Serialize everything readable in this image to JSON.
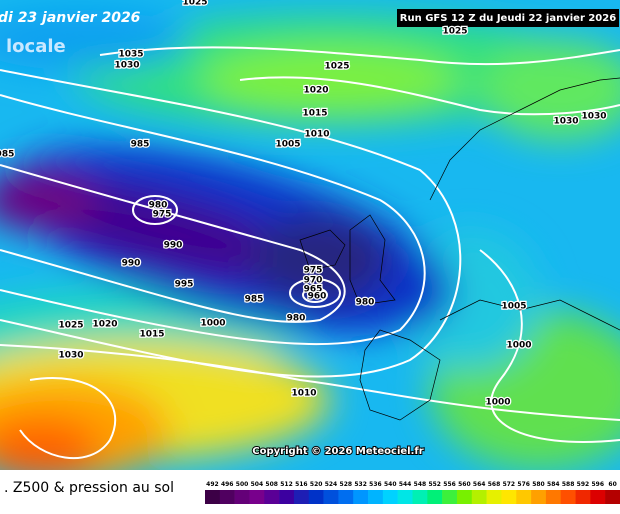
{
  "header": {
    "date": "di 23 janvier 2026",
    "subtitle": "locale",
    "run": "Run GFS 12 Z du Jeudi 22 janvier 2026"
  },
  "isobar_labels": [
    "1025",
    "1025",
    "1035",
    "1030",
    "1025",
    "1020",
    "1015",
    "1010",
    "1005",
    "985",
    "985",
    "980",
    "975",
    "990",
    "990",
    "995",
    "985",
    "975",
    "970",
    "965",
    "960",
    "980",
    "980",
    "1000",
    "1025",
    "1020",
    "1015",
    "1030",
    "1030",
    "1030",
    "1005",
    "1000",
    "1000",
    "1010"
  ],
  "copyright": "Copyright © 2026 Meteociel.fr",
  "footer": {
    "title": ". Z500 & pression au sol"
  },
  "legend": {
    "values": [
      492,
      496,
      500,
      504,
      508,
      512,
      516,
      520,
      524,
      528,
      532,
      536,
      540,
      544,
      548,
      552,
      556,
      560,
      564,
      568,
      572,
      576,
      580,
      584,
      588,
      592,
      596,
      60
    ],
    "colors": [
      "#3c0046",
      "#500060",
      "#640078",
      "#78008c",
      "#5a0096",
      "#3c00a0",
      "#1e1eb4",
      "#0032c8",
      "#0050dc",
      "#006ef0",
      "#0096ff",
      "#00b4ff",
      "#00d2ff",
      "#00e6e6",
      "#00f0b4",
      "#00f078",
      "#3cf03c",
      "#78f000",
      "#b4f000",
      "#e6f000",
      "#ffe600",
      "#ffc800",
      "#ffa000",
      "#ff7800",
      "#ff5000",
      "#f02800",
      "#dc0000",
      "#b40000"
    ]
  }
}
